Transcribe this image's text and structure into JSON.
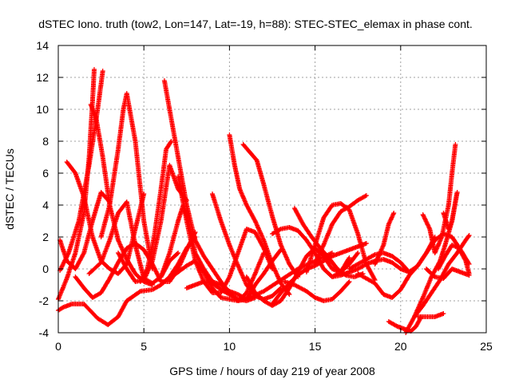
{
  "chart_data": {
    "type": "scatter",
    "title": "dSTEC Iono. truth (tow2, Lon=147, Lat=-19, h=88): STEC-STEC_elemax in phase cont.",
    "xlabel": "GPS time / hours of day 219 of year 2008",
    "ylabel": "dSTEC  / TECUs",
    "xlim": [
      0,
      25
    ],
    "ylim": [
      -4,
      14
    ],
    "x_ticks": [
      "0",
      "5",
      "10",
      "15",
      "20",
      "25"
    ],
    "y_ticks": [
      "-4",
      "-2",
      "0",
      "2",
      "4",
      "6",
      "8",
      "10",
      "12",
      "14"
    ],
    "grid": true,
    "marker": "+",
    "color": "#ff0000",
    "series": [
      {
        "x": [
          0.0,
          0.3,
          0.8,
          1.5,
          2.3,
          2.9,
          3.5,
          4.0,
          4.8,
          5.5,
          6.0,
          6.5,
          7.0,
          7.5,
          8.0
        ],
        "y": [
          -2.6,
          -2.4,
          -2.2,
          -2.2,
          -3.1,
          -3.5,
          -3.0,
          -2.0,
          -1.4,
          -1.3,
          -1.0,
          -0.5,
          0.3,
          1.3,
          2.0
        ]
      },
      {
        "x": [
          0.0,
          0.5,
          1.0,
          1.5,
          1.8,
          2.0,
          2.1
        ],
        "y": [
          -1.9,
          -0.6,
          1.0,
          3.5,
          7.0,
          10.5,
          12.5
        ]
      },
      {
        "x": [
          1.9,
          2.2,
          2.6,
          3.0,
          3.5,
          4.0,
          4.5,
          5.0,
          5.5
        ],
        "y": [
          10.3,
          9.5,
          7.0,
          4.0,
          1.8,
          0.6,
          -0.3,
          -0.8,
          -1.0
        ]
      },
      {
        "x": [
          0.1,
          0.6,
          1.2,
          1.8,
          2.3,
          2.6
        ],
        "y": [
          -0.1,
          1.0,
          3.0,
          6.5,
          10.0,
          12.4
        ]
      },
      {
        "x": [
          0.1,
          0.5,
          1.0,
          1.5,
          2.0,
          2.5,
          3.0
        ],
        "y": [
          1.8,
          0.5,
          0.0,
          1.0,
          3.0,
          4.8,
          4.2
        ]
      },
      {
        "x": [
          0.5,
          1.0,
          1.5,
          2.0,
          2.5,
          3.0,
          3.5,
          4.0,
          4.5,
          5.0
        ],
        "y": [
          6.7,
          6.0,
          4.5,
          2.0,
          0.5,
          0.0,
          -0.3,
          0.3,
          2.5,
          4.7
        ]
      },
      {
        "x": [
          1.0,
          1.5,
          2.0,
          2.5,
          3.0,
          3.5,
          4.0,
          4.5,
          5.0,
          5.5,
          6.0,
          6.5,
          7.0,
          7.5,
          8.0
        ],
        "y": [
          -0.5,
          -1.2,
          -1.8,
          -1.5,
          -0.6,
          0.4,
          1.3,
          1.6,
          1.2,
          0.3,
          -0.8,
          -0.8,
          0.0,
          1.2,
          2.3
        ]
      },
      {
        "x": [
          2.5,
          3.0,
          3.5,
          3.8,
          4.0,
          4.5,
          5.0,
          5.5
        ],
        "y": [
          2.0,
          4.0,
          7.5,
          10.0,
          11.0,
          8.0,
          3.0,
          0.0
        ]
      },
      {
        "x": [
          1.8,
          2.5,
          3.0,
          3.5,
          4.0,
          4.5,
          5.0,
          5.5,
          6.0,
          6.5,
          7.0
        ],
        "y": [
          -0.3,
          0.4,
          1.8,
          3.5,
          4.2,
          1.5,
          -0.6,
          -0.9,
          -0.5,
          0.5,
          1.0
        ]
      },
      {
        "x": [
          3.5,
          4.0,
          4.5,
          5.0,
          5.5,
          6.0,
          6.5,
          7.0,
          7.5
        ],
        "y": [
          1.0,
          0.0,
          -0.8,
          -0.7,
          0.5,
          3.0,
          6.5,
          5.0,
          4.3
        ]
      },
      {
        "x": [
          4.8,
          5.2,
          5.6,
          6.0,
          6.3,
          6.6
        ],
        "y": [
          -0.8,
          0.0,
          2.0,
          5.0,
          7.5,
          8.0
        ]
      },
      {
        "x": [
          6.2,
          6.5,
          7.0,
          7.5,
          8.0,
          8.5,
          9.0,
          9.5,
          10.0,
          10.5,
          11.0,
          11.5,
          12.0,
          12.5,
          13.0
        ],
        "y": [
          11.8,
          10.0,
          7.0,
          4.0,
          1.8,
          0.8,
          0.0,
          -0.8,
          -1.5,
          -2.0,
          -1.9,
          -1.0,
          -0.3,
          0.5,
          1.2
        ]
      },
      {
        "x": [
          7.0,
          7.5,
          8.0,
          8.5,
          9.0,
          9.5,
          10.0,
          10.5,
          11.0,
          11.5,
          12.0,
          12.5
        ],
        "y": [
          5.8,
          3.0,
          0.5,
          -0.8,
          -1.5,
          -1.5,
          -0.5,
          1.0,
          2.5,
          2.3,
          1.3,
          0.0
        ]
      },
      {
        "x": [
          6.0,
          6.5,
          7.0,
          7.3,
          7.6,
          8.0,
          8.5,
          9.0,
          9.5,
          10.0,
          10.5,
          11.0,
          12.0,
          13.0,
          14.0,
          15.0,
          16.0
        ],
        "y": [
          -0.5,
          1.0,
          3.0,
          4.0,
          3.0,
          1.0,
          0.0,
          -0.8,
          -1.0,
          -1.4,
          -1.6,
          -1.9,
          -1.4,
          -0.7,
          0.0,
          0.5,
          1.0
        ]
      },
      {
        "x": [
          6.5,
          7.0,
          7.5,
          8.0,
          8.5,
          9.0,
          9.5,
          10.0,
          10.5,
          11.0,
          11.5,
          12.0
        ],
        "y": [
          -0.6,
          -0.2,
          0.2,
          0.5,
          -0.2,
          -1.2,
          -1.8,
          -1.9,
          -2.0,
          -1.5,
          -0.3,
          1.0
        ]
      },
      {
        "x": [
          7.5,
          8.0,
          8.5,
          9.0,
          9.5,
          10.0,
          10.5,
          11.0,
          11.5
        ],
        "y": [
          -1.2,
          -1.0,
          -0.8,
          -0.9,
          -1.3,
          -1.6,
          -1.9,
          -2.0,
          -1.8
        ]
      },
      {
        "x": [
          9.0,
          9.5,
          10.0,
          10.5,
          11.0,
          11.5,
          12.0,
          12.5,
          13.0
        ],
        "y": [
          4.7,
          3.0,
          1.5,
          0.2,
          -1.0,
          -1.7,
          -1.9,
          -1.7,
          -1.2
        ]
      },
      {
        "x": [
          10.0,
          10.3,
          10.6,
          11.0,
          11.5,
          12.0,
          12.5,
          13.0,
          13.5
        ],
        "y": [
          8.4,
          6.5,
          5.0,
          4.0,
          3.0,
          1.8,
          0.3,
          -0.9,
          -1.6
        ]
      },
      {
        "x": [
          10.8,
          11.2,
          11.6,
          12.0,
          12.5,
          13.0,
          13.5,
          14.0
        ],
        "y": [
          7.8,
          7.3,
          6.8,
          5.3,
          3.3,
          1.5,
          0.3,
          -0.5
        ]
      },
      {
        "x": [
          11.0,
          11.5,
          12.0,
          12.5,
          13.0,
          13.5,
          14.0,
          14.5,
          15.0,
          15.5,
          16.0,
          16.5,
          17.0,
          17.5
        ],
        "y": [
          -0.5,
          -1.5,
          -2.0,
          -2.3,
          -2.0,
          -1.2,
          -0.2,
          0.8,
          1.3,
          0.8,
          0.0,
          -0.2,
          0.3,
          1.0
        ]
      },
      {
        "x": [
          12.5,
          13.0,
          13.5,
          14.0,
          14.5,
          15.0,
          15.5,
          16.0,
          16.5,
          17.0
        ],
        "y": [
          2.2,
          2.5,
          2.6,
          2.4,
          1.8,
          1.0,
          0.0,
          -0.5,
          -0.2,
          0.7
        ]
      },
      {
        "x": [
          12.5,
          13.0,
          13.5,
          14.0,
          14.5,
          15.0,
          15.5,
          16.0,
          16.5,
          17.0,
          17.5,
          18.0
        ],
        "y": [
          -2.2,
          -1.5,
          -0.9,
          -0.4,
          0.0,
          0.2,
          0.5,
          0.8,
          1.0,
          1.2,
          1.4,
          1.6
        ]
      },
      {
        "x": [
          13.2,
          13.8,
          14.5,
          15.0,
          15.5,
          16.0,
          16.5,
          17.0
        ],
        "y": [
          -0.8,
          -1.0,
          -1.4,
          -1.8,
          -2.0,
          -1.9,
          -1.4,
          -0.8
        ]
      },
      {
        "x": [
          13.8,
          14.3,
          14.8,
          15.3,
          15.8,
          16.3,
          16.8,
          17.3,
          17.8
        ],
        "y": [
          3.8,
          2.8,
          2.0,
          1.3,
          0.7,
          0.0,
          -0.4,
          -0.5,
          -0.3
        ]
      },
      {
        "x": [
          14.5,
          15.0,
          15.5,
          16.0,
          16.5,
          17.0,
          17.5,
          18.0,
          18.5
        ],
        "y": [
          -0.2,
          1.5,
          3.2,
          4.0,
          4.1,
          3.7,
          2.2,
          0.3,
          -0.7
        ]
      },
      {
        "x": [
          15.0,
          15.5,
          16.0,
          16.5,
          17.0,
          17.5,
          18.0
        ],
        "y": [
          0.3,
          1.5,
          2.8,
          3.6,
          3.9,
          4.3,
          4.6
        ]
      },
      {
        "x": [
          16.0,
          16.5,
          17.0,
          17.5,
          18.0,
          18.5,
          19.0,
          19.5,
          20.0,
          20.5,
          21.0,
          21.5,
          22.0
        ],
        "y": [
          -0.5,
          -0.4,
          -0.2,
          0.0,
          0.3,
          0.5,
          0.6,
          0.4,
          0.0,
          -0.2,
          0.2,
          1.0,
          2.0
        ]
      },
      {
        "x": [
          17.5,
          18.0,
          18.5,
          19.0,
          19.5,
          20.0,
          20.5,
          21.0,
          21.5,
          22.0,
          22.5,
          23.0,
          23.5,
          24.0
        ],
        "y": [
          -0.3,
          -0.6,
          -0.9,
          -1.6,
          -1.8,
          -1.3,
          -0.4,
          0.2,
          1.0,
          1.8,
          2.2,
          2.0,
          1.2,
          0.3
        ]
      },
      {
        "x": [
          17.0,
          17.5,
          18.0,
          18.5,
          19.0,
          19.5,
          20.0,
          20.5
        ],
        "y": [
          0.0,
          0.3,
          0.6,
          0.9,
          1.0,
          0.8,
          0.4,
          -0.2
        ]
      },
      {
        "x": [
          18.5,
          19.0,
          19.3,
          19.6
        ],
        "y": [
          0.3,
          1.5,
          2.8,
          3.5
        ]
      },
      {
        "x": [
          19.3,
          19.8,
          20.3,
          20.6,
          20.9,
          21.2
        ],
        "y": [
          -3.3,
          -3.6,
          -3.8,
          -3.9,
          -3.6,
          -3.0
        ]
      },
      {
        "x": [
          20.3,
          20.8,
          21.3,
          21.8,
          22.3,
          22.6,
          23.0,
          23.3
        ],
        "y": [
          -4.0,
          -3.0,
          -1.8,
          -0.5,
          0.5,
          1.5,
          3.0,
          4.8
        ]
      },
      {
        "x": [
          20.8,
          21.3,
          21.8,
          22.3,
          22.8,
          23.3,
          23.8,
          24.0
        ],
        "y": [
          -3.0,
          -2.3,
          -1.5,
          -0.7,
          0.3,
          1.0,
          1.8,
          2.1
        ]
      },
      {
        "x": [
          21.0,
          21.5,
          22.0,
          22.5
        ],
        "y": [
          -3.0,
          -3.0,
          -3.0,
          -2.8
        ]
      },
      {
        "x": [
          21.3,
          21.7,
          22.0,
          22.4,
          22.8,
          23.0,
          23.2
        ],
        "y": [
          3.4,
          2.5,
          1.0,
          2.0,
          4.0,
          6.0,
          7.8
        ]
      },
      {
        "x": [
          21.5,
          22.0,
          22.5,
          23.0,
          23.5,
          24.0
        ],
        "y": [
          0.0,
          -0.5,
          -0.6,
          0.0,
          -0.2,
          -0.4
        ]
      },
      {
        "x": [
          22.2,
          22.6,
          23.0,
          23.4,
          23.8,
          24.0
        ],
        "y": [
          0.0,
          0.8,
          1.5,
          1.3,
          0.5,
          -0.3
        ]
      },
      {
        "x": [
          22.5,
          22.8,
          23.0,
          23.3
        ],
        "y": [
          3.5,
          2.5,
          3.0,
          4.8
        ]
      }
    ]
  }
}
